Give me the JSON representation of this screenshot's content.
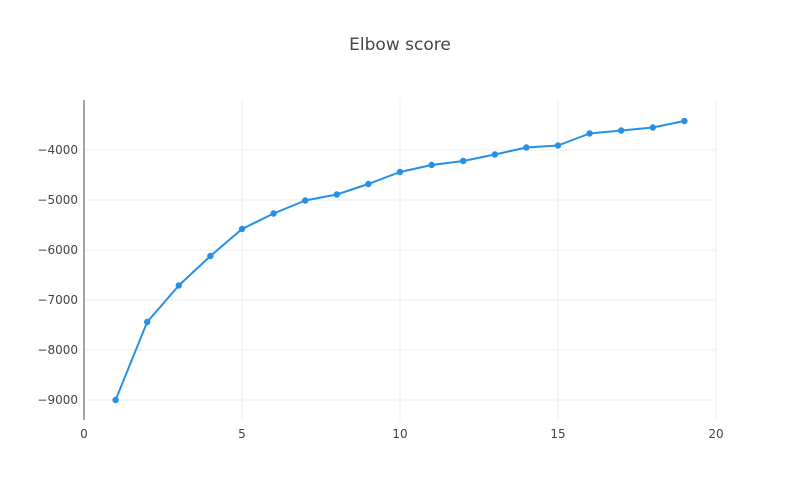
{
  "chart_data": {
    "type": "line",
    "title": "Elbow score",
    "xlabel": "",
    "ylabel": "",
    "xlim": [
      0,
      20
    ],
    "ylim": [
      -9400,
      -3000
    ],
    "x_ticks": [
      0,
      5,
      10,
      15,
      20
    ],
    "y_ticks": [
      -9000,
      -8000,
      -7000,
      -6000,
      -5000,
      -4000
    ],
    "grid": true,
    "series": [
      {
        "x": [
          1,
          2,
          3,
          4,
          5,
          6,
          7,
          8,
          9,
          10,
          11,
          12,
          13,
          14,
          15,
          16,
          17,
          18,
          19
        ],
        "y": [
          -9000,
          -7440,
          -6710,
          -6120,
          -5580,
          -5270,
          -5010,
          -4890,
          -4680,
          -4440,
          -4300,
          -4220,
          -4090,
          -3950,
          -3910,
          -3670,
          -3610,
          -3550,
          -3420
        ]
      }
    ]
  },
  "colors": {
    "line": "#2590e8",
    "grid": "#eeeeee",
    "axis": "#444444",
    "text": "#444444"
  }
}
